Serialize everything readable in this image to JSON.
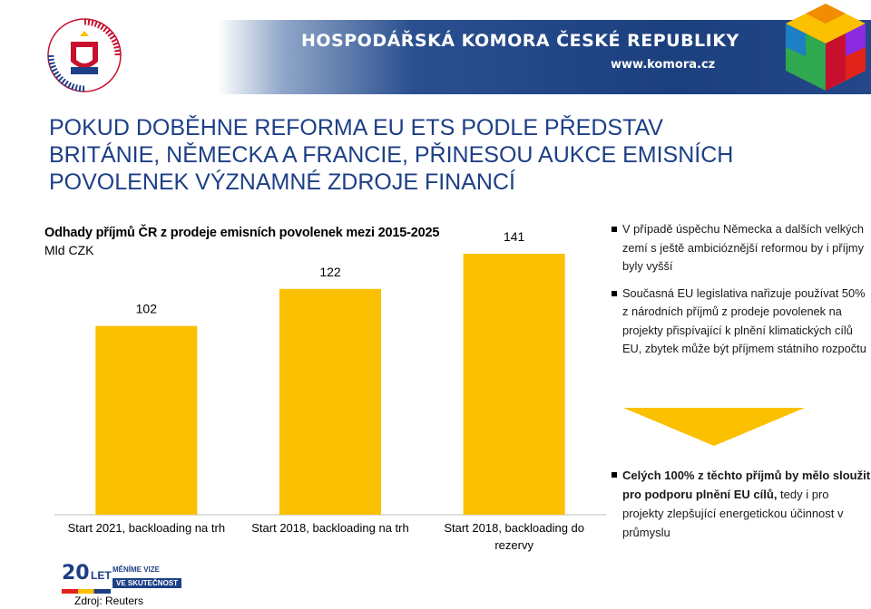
{
  "header": {
    "banner_title": "HOSPODÁŘSKÁ KOMORA ČESKÉ REPUBLIKY",
    "banner_url": "www.komora.cz",
    "logo_icon": "chamber-of-commerce-seal-icon",
    "cube_icon": "colorful-cube-icon"
  },
  "title_lines": [
    "POKUD DOBĚHNE REFORMA EU ETS PODLE PŘEDSTAV",
    "BRITÁNIE, NĚMECKA A FRANCIE, PŘINESOU  AUKCE EMISNÍCH",
    "POVOLENEK VÝZNAMNÉ ZDROJE FINANCÍ"
  ],
  "chart_data": {
    "type": "bar",
    "title": "Odhady příjmů ČR z prodeje emisních povolenek mezi 2015-2025",
    "ylabel": "Mld CZK",
    "categories": [
      [
        "Start 2021, backloading na trh"
      ],
      [
        "Start 2018, backloading na trh"
      ],
      [
        "Start 2018, backloading do",
        "rezervy"
      ]
    ],
    "values": [
      102,
      122,
      141
    ],
    "ylim": [
      0,
      141
    ],
    "grid": false,
    "bar_color": "#fbc000"
  },
  "right_panel": {
    "bullets": [
      "V případě úspěchu Německa a dalších velkých zemí s ještě ambicióznější reformou by i příjmy byly vyšší",
      "Současná EU legislativa nařizuje používat 50% z národních příjmů z prodeje povolenek na projekty přispívající k plnění klimatických cílů EU, zbytek může být příjmem státního rozpočtu"
    ],
    "conclusion_bold": "Celých 100% z těchto příjmů by mělo sloužit pro podporu plnění EU cílů,",
    "conclusion_rest": " tedy i pro projekty zlepšující energetickou účinnost v průmyslu",
    "arrow_color": "#fbc000"
  },
  "footer": {
    "logo_number": "20",
    "logo_let": "LET",
    "logo_line1": "MĚNÍME VIZE",
    "logo_line2": "VE SKUTEČNOST",
    "source": "Zdroj: Reuters"
  }
}
